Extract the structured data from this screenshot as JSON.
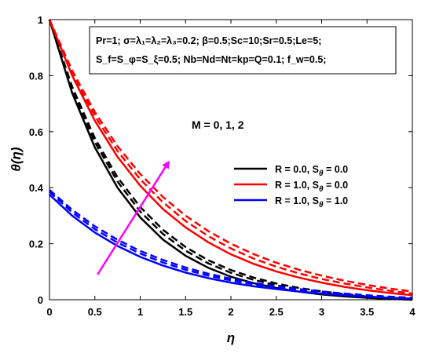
{
  "chart_data": {
    "type": "line",
    "title": "",
    "xlabel": "η",
    "ylabel": "θ(η)",
    "xlim": [
      0,
      4
    ],
    "ylim": [
      0,
      1
    ],
    "xticks": [
      "0",
      "0.5",
      "1",
      "1.5",
      "2",
      "2.5",
      "3",
      "3.5",
      "4"
    ],
    "yticks": [
      "0",
      "0.2",
      "0.4",
      "0.6",
      "0.8",
      "1"
    ],
    "grid": false,
    "legend_position": "center-right",
    "parameters": {
      "line1": "Pr=1; σ=λ₁=λ₂=λ₃=0.2; β=0.5;Sc=10;Sr=0.5;Le=5;",
      "line2": "S_f=S_φ=S_ξ=0.5; Nb=Nd=Nt=kp=Q=0.1; f_w=0.5;"
    },
    "annotation": "M = 0, 1, 2",
    "arrow_note": "increasing M",
    "legend": [
      {
        "label": "R = 0.0, S",
        "sub": "θ",
        "suffix": " = 0.0",
        "color": "#000000"
      },
      {
        "label": "R = 1.0, S",
        "sub": "θ",
        "suffix": " = 0.0",
        "color": "#ff0000"
      },
      {
        "label": "R = 1.0, S",
        "sub": "θ",
        "suffix": " = 1.0",
        "color": "#0000ff"
      }
    ],
    "x": [
      0,
      0.25,
      0.5,
      0.75,
      1.0,
      1.25,
      1.5,
      1.75,
      2.0,
      2.25,
      2.5,
      2.75,
      3.0,
      3.25,
      3.5,
      3.75,
      4.0
    ],
    "series": [
      {
        "group": "R=0.0,Sθ=0.0",
        "M": 0,
        "color": "#000000",
        "dash": "solid",
        "values": [
          1.0,
          0.738,
          0.544,
          0.4,
          0.294,
          0.215,
          0.157,
          0.114,
          0.082,
          0.059,
          0.042,
          0.029,
          0.019,
          0.012,
          0.007,
          0.003,
          0.0
        ]
      },
      {
        "group": "R=0.0,Sθ=0.0",
        "M": 1,
        "color": "#000000",
        "dash": "dashed",
        "values": [
          1.0,
          0.751,
          0.563,
          0.422,
          0.315,
          0.235,
          0.175,
          0.13,
          0.096,
          0.071,
          0.052,
          0.037,
          0.026,
          0.017,
          0.01,
          0.005,
          0.0
        ]
      },
      {
        "group": "R=0.0,Sθ=0.0",
        "M": 2,
        "color": "#000000",
        "dash": "dashed",
        "values": [
          1.0,
          0.76,
          0.577,
          0.437,
          0.331,
          0.25,
          0.188,
          0.141,
          0.106,
          0.079,
          0.058,
          0.042,
          0.03,
          0.02,
          0.012,
          0.006,
          0.0
        ]
      },
      {
        "group": "R=1.0,Sθ=0.0",
        "M": 0,
        "color": "#ff0000",
        "dash": "solid",
        "values": [
          1.0,
          0.8,
          0.639,
          0.51,
          0.407,
          0.324,
          0.258,
          0.205,
          0.162,
          0.128,
          0.101,
          0.079,
          0.061,
          0.046,
          0.034,
          0.024,
          0.016
        ]
      },
      {
        "group": "R=1.0,Sθ=0.0",
        "M": 1,
        "color": "#ff0000",
        "dash": "dashed",
        "values": [
          1.0,
          0.81,
          0.656,
          0.531,
          0.43,
          0.348,
          0.281,
          0.227,
          0.183,
          0.147,
          0.118,
          0.094,
          0.074,
          0.058,
          0.044,
          0.032,
          0.022
        ]
      },
      {
        "group": "R=1.0,Sθ=0.0",
        "M": 2,
        "color": "#ff0000",
        "dash": "dashed",
        "values": [
          1.0,
          0.818,
          0.67,
          0.548,
          0.449,
          0.367,
          0.3,
          0.245,
          0.2,
          0.163,
          0.132,
          0.107,
          0.086,
          0.068,
          0.053,
          0.04,
          0.029
        ]
      },
      {
        "group": "R=1.0,Sθ=1.0",
        "M": 0,
        "color": "#0000ff",
        "dash": "solid",
        "values": [
          0.375,
          0.3,
          0.24,
          0.192,
          0.153,
          0.122,
          0.097,
          0.077,
          0.061,
          0.048,
          0.038,
          0.029,
          0.022,
          0.016,
          0.011,
          0.007,
          0.004
        ]
      },
      {
        "group": "R=1.0,Sθ=1.0",
        "M": 1,
        "color": "#0000ff",
        "dash": "dashed",
        "values": [
          0.385,
          0.312,
          0.252,
          0.204,
          0.165,
          0.133,
          0.107,
          0.086,
          0.069,
          0.055,
          0.044,
          0.034,
          0.026,
          0.02,
          0.014,
          0.01,
          0.006
        ]
      },
      {
        "group": "R=1.0,Sθ=1.0",
        "M": 2,
        "color": "#0000ff",
        "dash": "dashed",
        "values": [
          0.392,
          0.321,
          0.262,
          0.214,
          0.174,
          0.142,
          0.115,
          0.093,
          0.075,
          0.06,
          0.048,
          0.038,
          0.029,
          0.022,
          0.016,
          0.011,
          0.007
        ]
      }
    ],
    "arrow": {
      "from": [
        0.53,
        0.09
      ],
      "to": [
        1.31,
        0.49
      ],
      "color": "#ff00ff"
    }
  }
}
